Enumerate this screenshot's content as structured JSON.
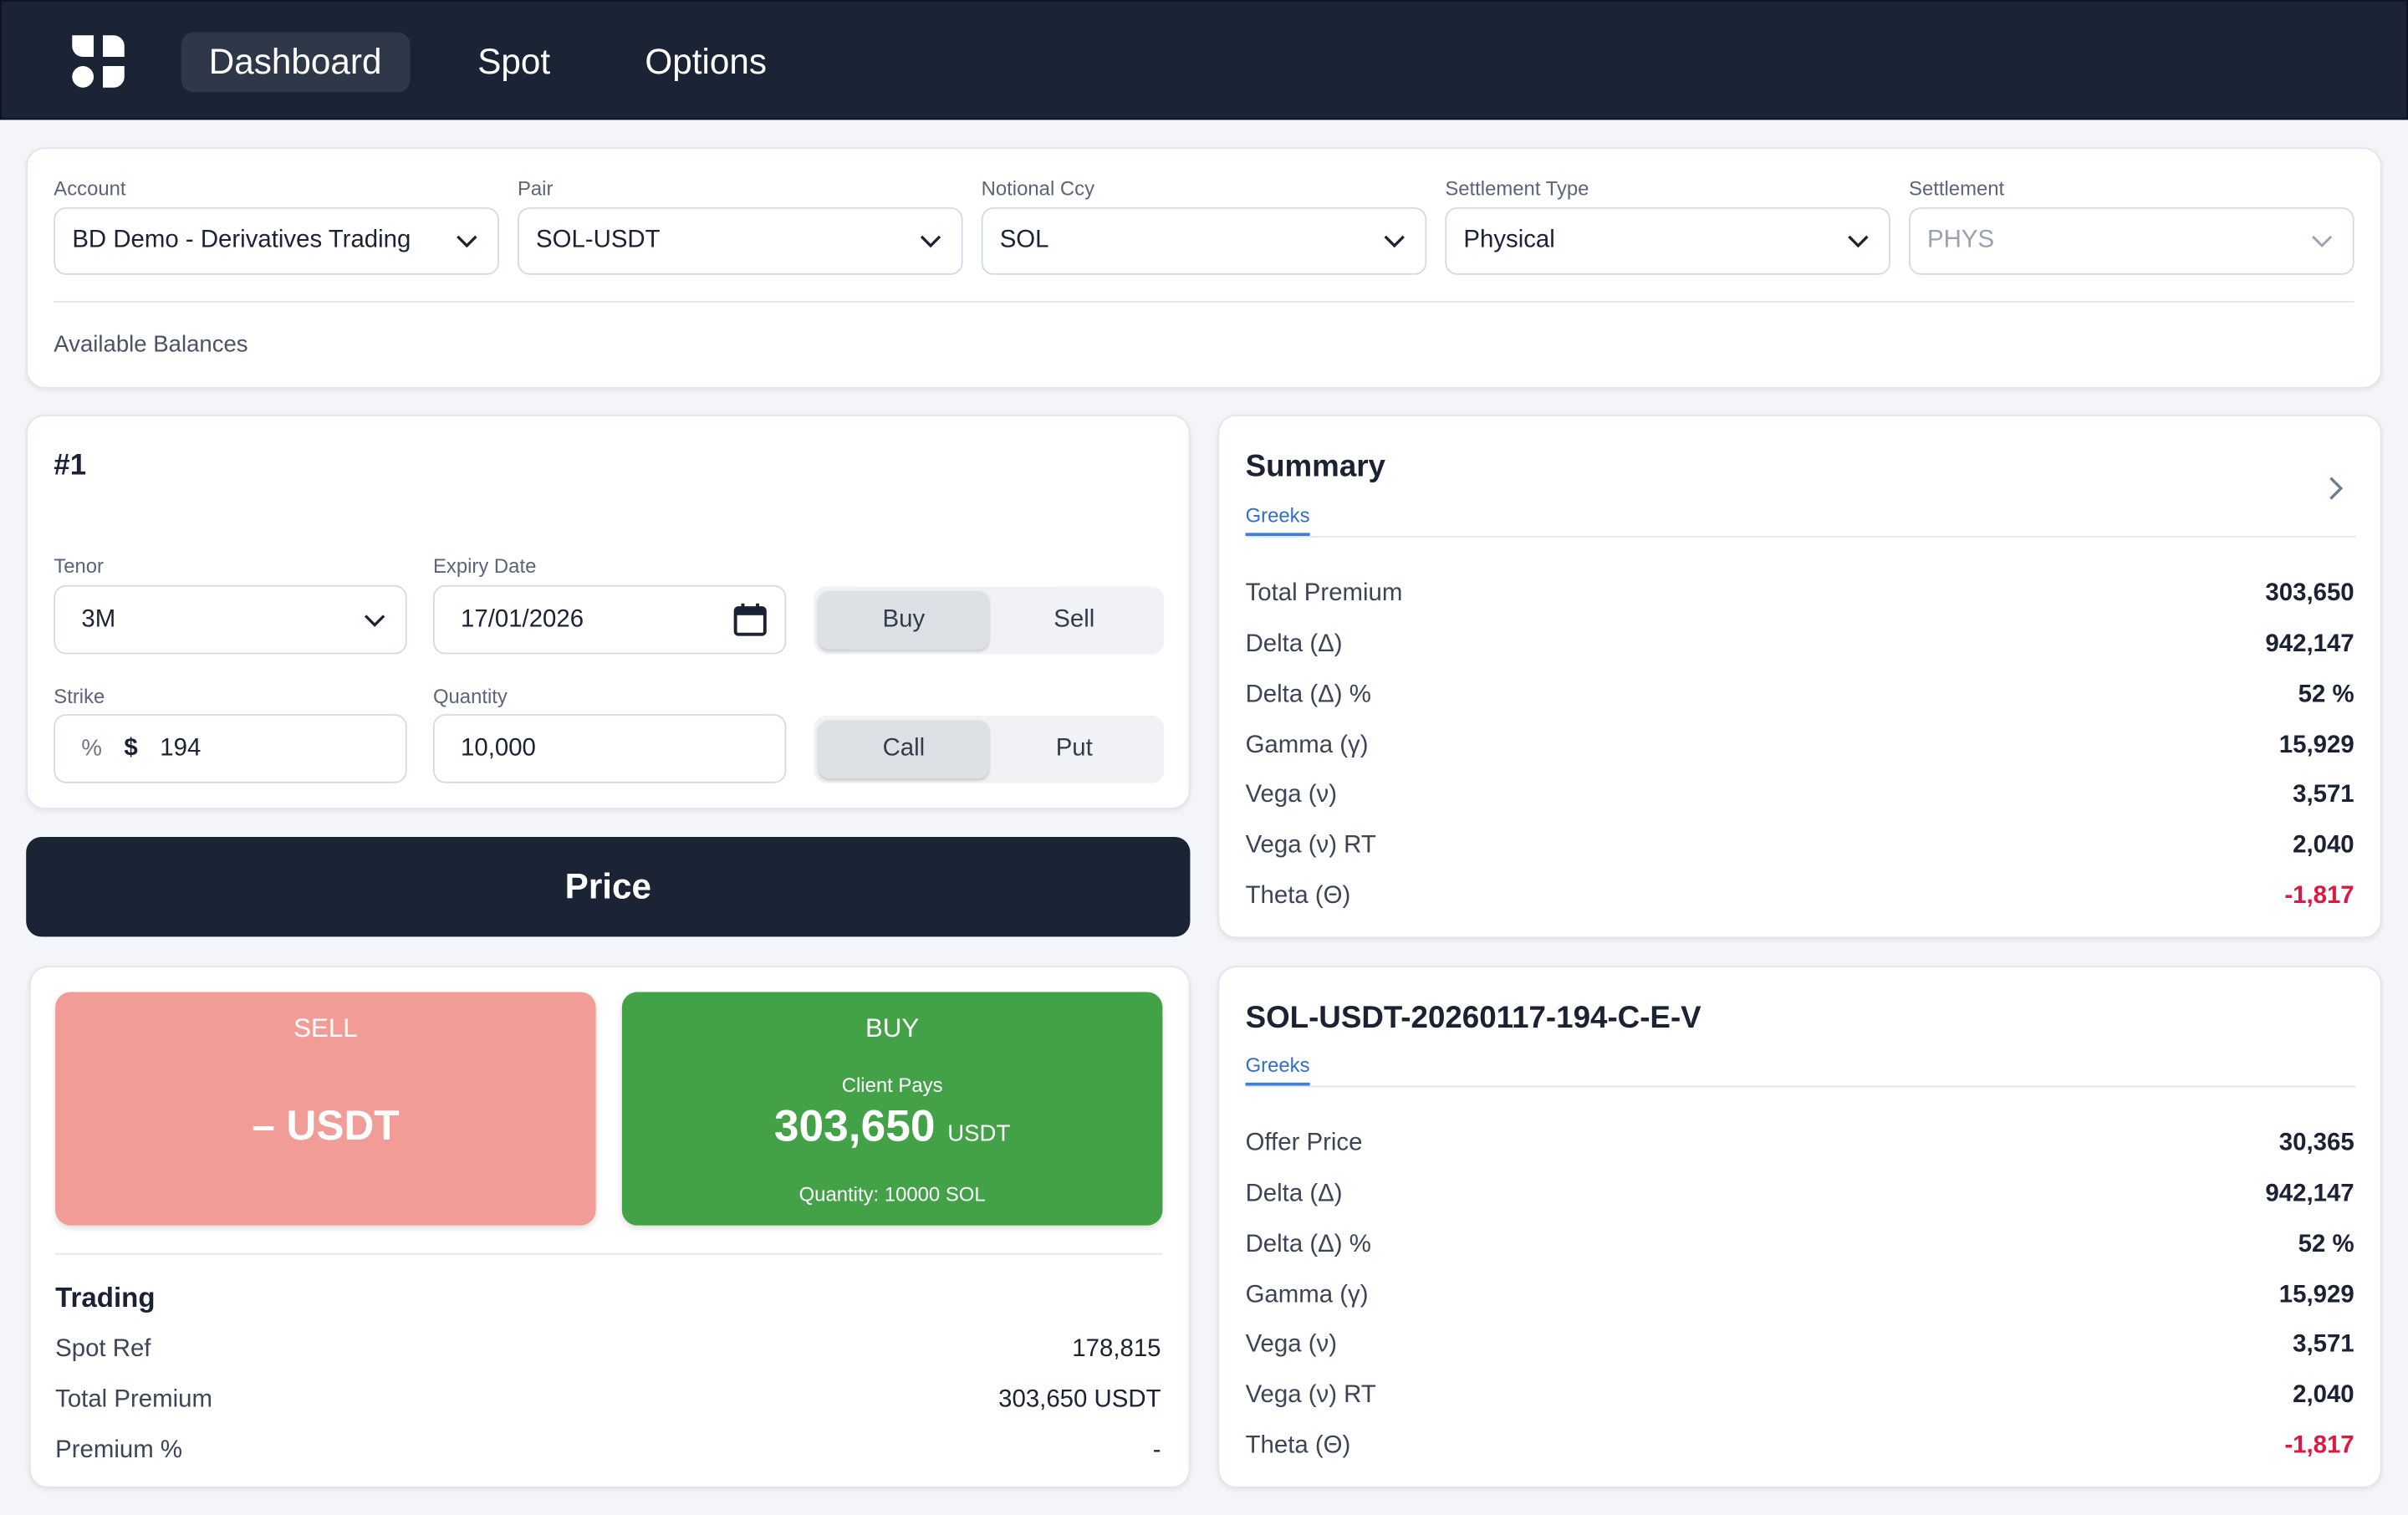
{
  "nav": {
    "tabs": [
      {
        "label": "Dashboard",
        "active": true
      },
      {
        "label": "Spot",
        "active": false
      },
      {
        "label": "Options",
        "active": false
      }
    ]
  },
  "filters": {
    "account_label": "Account",
    "account_value": "BD Demo - Derivatives Trading",
    "pair_label": "Pair",
    "pair_value": "SOL-USDT",
    "notional_label": "Notional Ccy",
    "notional_value": "SOL",
    "settlement_type_label": "Settlement Type",
    "settlement_type_value": "Physical",
    "settlement_label": "Settlement",
    "settlement_value": "PHYS",
    "balances_label": "Available Balances"
  },
  "leg": {
    "title": "#1",
    "tenor_label": "Tenor",
    "tenor_value": "3M",
    "expiry_label": "Expiry Date",
    "expiry_value": "17/01/2026",
    "side_buy": "Buy",
    "side_sell": "Sell",
    "strike_label": "Strike",
    "strike_pct": "%",
    "strike_dollar": "$",
    "strike_value": "194",
    "quantity_label": "Quantity",
    "quantity_value": "10,000",
    "type_call": "Call",
    "type_put": "Put"
  },
  "price_button": "Price",
  "quote": {
    "sell_label": "SELL",
    "sell_value": "– USDT",
    "buy_label": "BUY",
    "buy_caption": "Client Pays",
    "buy_value": "303,650",
    "buy_unit": "USDT",
    "buy_quantity": "Quantity: 10000 SOL"
  },
  "trading": {
    "title": "Trading",
    "rows": [
      {
        "k": "Spot Ref",
        "v": "178,815"
      },
      {
        "k": "Total Premium",
        "v": "303,650 USDT"
      },
      {
        "k": "Premium %",
        "v": "-"
      }
    ]
  },
  "summary": {
    "title": "Summary",
    "tab": "Greeks",
    "rows": [
      {
        "k": "Total Premium",
        "v": "303,650"
      },
      {
        "k": "Delta (Δ)",
        "v": "942,147"
      },
      {
        "k": "Delta (Δ) %",
        "v": "52 %"
      },
      {
        "k": "Gamma (γ)",
        "v": "15,929"
      },
      {
        "k": "Vega (ν)",
        "v": "3,571"
      },
      {
        "k": "Vega (ν) RT",
        "v": "2,040"
      },
      {
        "k": "Theta (Θ)",
        "v": "-1,817"
      }
    ]
  },
  "instrument": {
    "title": "SOL-USDT-20260117-194-C-E-V",
    "tab": "Greeks",
    "rows": [
      {
        "k": "Offer Price",
        "v": "30,365"
      },
      {
        "k": "Delta (Δ)",
        "v": "942,147"
      },
      {
        "k": "Delta (Δ) %",
        "v": "52 %"
      },
      {
        "k": "Gamma (γ)",
        "v": "15,929"
      },
      {
        "k": "Vega (ν)",
        "v": "3,571"
      },
      {
        "k": "Vega (ν) RT",
        "v": "2,040"
      },
      {
        "k": "Theta (Θ)",
        "v": "-1,817"
      }
    ]
  },
  "colors": {
    "nav_bg": "#1b2434",
    "sell": "#f29c98",
    "buy": "#43a148",
    "negative": "#e0183f",
    "accent": "#3c7de0"
  }
}
